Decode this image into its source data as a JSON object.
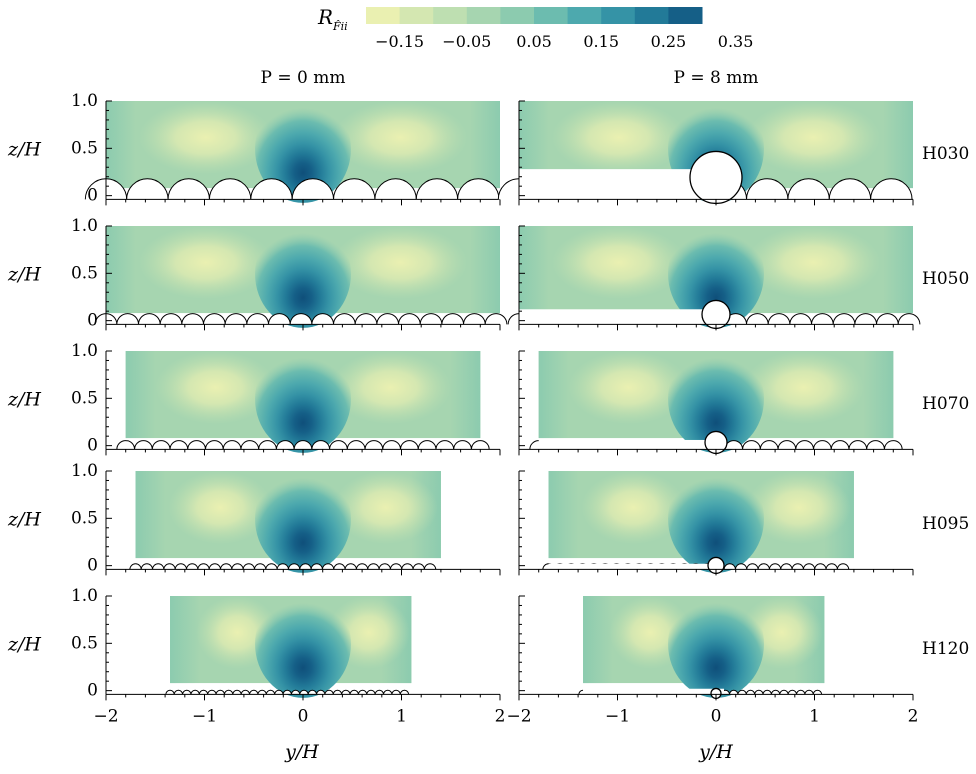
{
  "colorbar": {
    "symbol": "R",
    "subscript": "F̂ii",
    "tick_labels": [
      "−0.15",
      "−0.05",
      "0.05",
      "0.15",
      "0.25",
      "0.35"
    ],
    "colors": [
      "#eaf0b1",
      "#d4e7b1",
      "#bedfb1",
      "#a6d5b0",
      "#8ccbaf",
      "#6cbcaf",
      "#4da9ae",
      "#3593a6",
      "#227a98",
      "#155f87"
    ]
  },
  "columns": [
    {
      "title": "P = 0 mm"
    },
    {
      "title": "P = 8 mm"
    }
  ],
  "rows": [
    {
      "label": "H030",
      "x_extent": [
        -2,
        2
      ]
    },
    {
      "label": "H050",
      "x_extent": [
        -2,
        2
      ]
    },
    {
      "label": "H070",
      "x_extent": [
        -1.8,
        1.8
      ]
    },
    {
      "label": "H095",
      "x_extent": [
        -1.7,
        1.4
      ]
    },
    {
      "label": "H120",
      "x_extent": [
        -1.35,
        1.1
      ]
    }
  ],
  "axes": {
    "xlabel": "y/H",
    "ylabel": "z/H",
    "x_ticks": [
      -2,
      -1,
      0,
      1,
      2
    ],
    "x_tick_labels": [
      "−2",
      "−1",
      "0",
      "1",
      "2"
    ],
    "y_ticks": [
      0,
      0.5,
      1.0
    ],
    "y_tick_labels": [
      "0",
      "0.5",
      "1.0"
    ],
    "xlim": [
      -2,
      2
    ],
    "ylim": [
      -0.12,
      1.0
    ]
  },
  "chart_data": {
    "type": "heatmap",
    "field": "R_F̂ii (contour, 10 levels from ≈ −0.2 to 0.4)",
    "color_range": [
      -0.2,
      0.4
    ],
    "xlabel": "y/H",
    "ylabel": "z/H",
    "panels": [
      {
        "row": "H030",
        "column": "P = 0 mm",
        "y_range": [
          -2,
          2
        ],
        "peak_at_y": 0,
        "peak_value": 0.3
      },
      {
        "row": "H030",
        "column": "P = 8 mm",
        "y_range": [
          -2,
          2
        ],
        "peak_at_y": 0,
        "peak_value": 0.25
      },
      {
        "row": "H050",
        "column": "P = 0 mm",
        "y_range": [
          -2,
          2
        ],
        "peak_at_y": 0,
        "peak_value": 0.35
      },
      {
        "row": "H050",
        "column": "P = 8 mm",
        "y_range": [
          -2,
          2
        ],
        "peak_at_y": 0,
        "peak_value": 0.3
      },
      {
        "row": "H070",
        "column": "P = 0 mm",
        "y_range": [
          -1.8,
          1.8
        ],
        "peak_at_y": 0,
        "peak_value": 0.38
      },
      {
        "row": "H070",
        "column": "P = 8 mm",
        "y_range": [
          -1.8,
          1.8
        ],
        "peak_at_y": 0,
        "peak_value": 0.33
      },
      {
        "row": "H095",
        "column": "P = 0 mm",
        "y_range": [
          -1.7,
          1.4
        ],
        "peak_at_y": 0,
        "peak_value": 0.38
      },
      {
        "row": "H095",
        "column": "P = 8 mm",
        "y_range": [
          -1.7,
          1.4
        ],
        "peak_at_y": 0,
        "peak_value": 0.35
      },
      {
        "row": "H120",
        "column": "P = 0 mm",
        "y_range": [
          -1.35,
          1.1
        ],
        "peak_at_y": 0,
        "peak_value": 0.38
      },
      {
        "row": "H120",
        "column": "P = 8 mm",
        "y_range": [
          -1.35,
          1.1
        ],
        "peak_at_y": 0,
        "peak_value": 0.35
      }
    ]
  }
}
